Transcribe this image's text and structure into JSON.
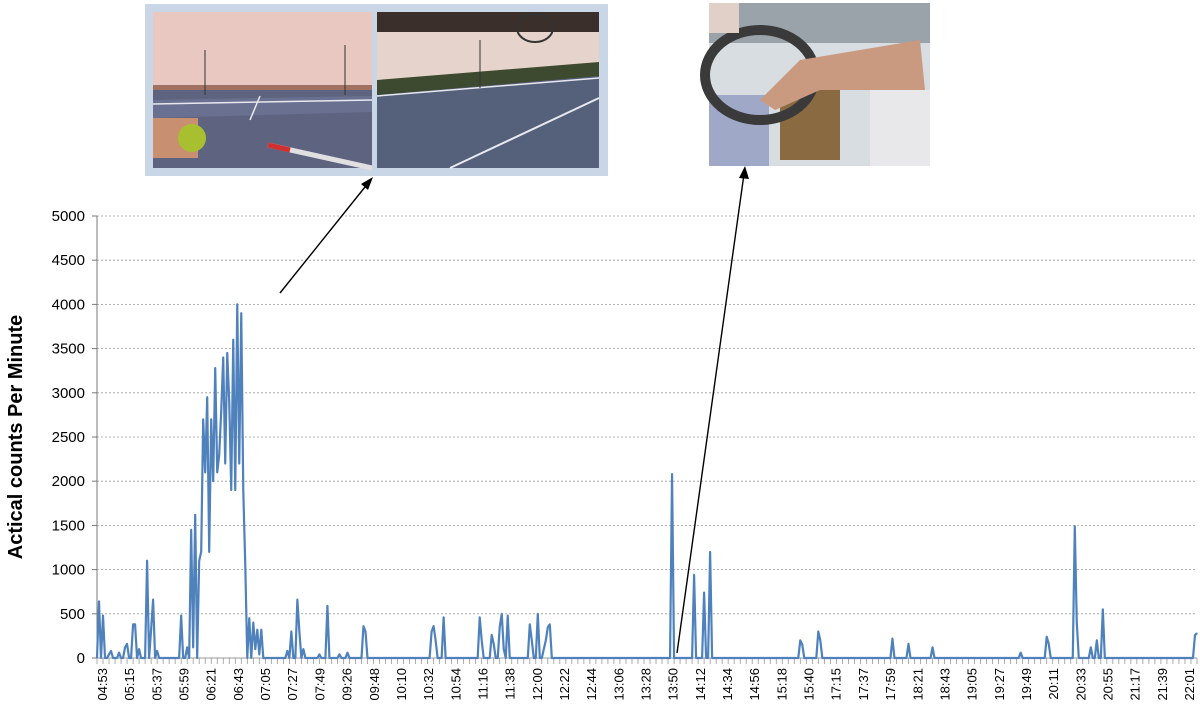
{
  "chart_data": {
    "type": "line",
    "title": "",
    "xlabel": "",
    "ylabel": "Actical counts Per Minute",
    "ylim": [
      0,
      5000
    ],
    "yticks": [
      0,
      500,
      1000,
      1500,
      2000,
      2500,
      3000,
      3500,
      4000,
      4500,
      5000
    ],
    "grid": true,
    "line_color": "#4f81bd",
    "grid_color": "#9a9a9a",
    "x_tick_labels": [
      "04:53",
      "05:15",
      "05:37",
      "05:59",
      "06:21",
      "06:43",
      "07:05",
      "07:27",
      "07:49",
      "09:26",
      "09:48",
      "10:10",
      "10:32",
      "10:54",
      "11:16",
      "11:38",
      "12:00",
      "12:22",
      "12:44",
      "13:06",
      "13:28",
      "13:50",
      "14:12",
      "14:34",
      "14:56",
      "15:18",
      "15:40",
      "17:15",
      "17:37",
      "17:59",
      "18:21",
      "18:43",
      "19:05",
      "19:27",
      "19:49",
      "20:11",
      "20:33",
      "20:55",
      "21:17",
      "21:39",
      "22:01"
    ],
    "series": [
      {
        "values": [
          0,
          640,
          0,
          480,
          0,
          0,
          40,
          80,
          0,
          0,
          0,
          60,
          0,
          0,
          120,
          160,
          0,
          0,
          380,
          380,
          0,
          100,
          0,
          0,
          0,
          1100,
          0,
          320,
          660,
          0,
          80,
          0,
          0,
          0,
          0,
          0,
          0,
          0,
          0,
          0,
          0,
          0,
          480,
          0,
          0,
          120,
          0,
          1450,
          120,
          1620,
          0,
          1100,
          1200,
          2700,
          2100,
          2950,
          1200,
          2700,
          2000,
          3280,
          2100,
          2300,
          2800,
          3400,
          2200,
          3450,
          2900,
          1900,
          3600,
          1900,
          4000,
          2200,
          3900,
          1900,
          1050,
          0,
          450,
          0,
          400,
          100,
          320,
          40,
          320,
          0,
          0,
          0,
          0,
          0,
          0,
          0,
          0,
          0,
          0,
          0,
          0,
          80,
          0,
          300,
          0,
          0,
          660,
          300,
          0,
          100,
          0,
          0,
          0,
          0,
          0,
          0,
          0,
          40,
          0,
          0,
          0,
          590,
          0,
          0,
          0,
          0,
          0,
          40,
          0,
          0,
          0,
          60,
          0,
          0,
          0,
          0,
          0,
          0,
          0,
          360,
          300,
          0,
          0,
          0,
          0,
          0,
          0,
          0,
          0,
          0,
          0,
          0,
          0,
          0,
          0,
          0,
          0,
          0,
          0,
          0,
          0,
          0,
          0,
          0,
          0,
          0,
          0,
          0,
          0,
          0,
          0,
          0,
          0,
          300,
          360,
          200,
          0,
          0,
          0,
          460,
          0,
          0,
          0,
          0,
          0,
          0,
          0,
          0,
          0,
          0,
          0,
          0,
          0,
          0,
          0,
          0,
          0,
          460,
          200,
          0,
          0,
          0,
          0,
          260,
          160,
          0,
          0,
          350,
          500,
          100,
          0,
          480,
          0,
          0,
          0,
          0,
          0,
          0,
          0,
          0,
          0,
          0,
          380,
          200,
          0,
          0,
          500,
          0,
          0,
          100,
          200,
          350,
          380,
          0,
          0,
          0,
          0,
          0,
          0,
          0,
          0,
          0,
          0,
          0,
          0,
          0,
          0,
          0,
          0,
          0,
          0,
          0,
          0,
          0,
          0,
          0,
          0,
          0,
          0,
          0,
          0,
          0,
          0,
          0,
          0,
          0,
          0,
          0,
          0,
          0,
          0,
          0,
          0,
          0,
          0,
          0,
          0,
          0,
          0,
          0,
          0,
          0,
          0,
          0,
          0,
          0,
          0,
          0,
          0,
          0,
          0,
          0,
          0,
          2080,
          0,
          0,
          0,
          0,
          0,
          0,
          0,
          0,
          0,
          0,
          940,
          0,
          0,
          0,
          0,
          740,
          0,
          0,
          1200,
          0,
          0,
          0,
          0,
          0,
          0,
          0,
          0,
          0,
          0,
          0,
          0,
          0,
          0,
          0,
          0,
          0,
          0,
          0,
          0,
          0,
          0,
          0,
          0,
          0,
          0,
          0,
          0,
          0,
          0,
          0,
          0,
          0,
          0,
          0,
          0,
          0,
          0,
          0,
          0,
          0,
          0,
          0,
          0,
          200,
          150,
          0,
          0,
          0,
          0,
          0,
          0,
          0,
          300,
          200,
          0,
          0,
          0,
          0,
          0,
          0,
          0,
          0,
          0,
          0,
          0,
          0,
          0,
          0,
          0,
          0,
          0,
          0,
          0,
          0,
          0,
          0,
          0,
          0,
          0,
          0,
          0,
          0,
          0,
          0,
          0,
          0,
          0,
          0,
          0,
          220,
          0,
          0,
          0,
          0,
          0,
          0,
          0,
          160,
          0,
          0,
          0,
          0,
          0,
          0,
          0,
          0,
          0,
          0,
          0,
          120,
          0,
          0,
          0,
          0,
          0,
          0,
          0,
          0,
          0,
          0,
          0,
          0,
          0,
          0,
          0,
          0,
          0,
          0,
          0,
          0,
          0,
          0,
          0,
          0,
          0,
          0,
          0,
          0,
          0,
          0,
          0,
          0,
          0,
          0,
          0,
          0,
          0,
          0,
          0,
          0,
          0,
          0,
          0,
          60,
          0,
          0,
          0,
          0,
          0,
          0,
          0,
          0,
          0,
          0,
          0,
          0,
          240,
          160,
          0,
          0,
          0,
          0,
          0,
          0,
          0,
          0,
          0,
          0,
          0,
          0,
          1490,
          400,
          0,
          0,
          0,
          0,
          0,
          0,
          120,
          0,
          0,
          200,
          0,
          0,
          550,
          0,
          0,
          0,
          0,
          0,
          0,
          0,
          0,
          0,
          0,
          0,
          0,
          0,
          0,
          0,
          0,
          0,
          0,
          0,
          0,
          0,
          0,
          0,
          0,
          0,
          0,
          0,
          0,
          0,
          0,
          0,
          0,
          0,
          0,
          0,
          0,
          0,
          0,
          0,
          0,
          0,
          0,
          0,
          0,
          0,
          260,
          280
        ]
      }
    ]
  },
  "photos": {
    "tennis": {
      "frame_color": "#c9d6e6",
      "panel_left": {
        "sky": "#e9c8c2",
        "court": "#5e6380",
        "ball": "#a8c030"
      },
      "panel_right": {
        "sky": "#e6d4cc",
        "court": "#55607a",
        "trees": "#3e4a30"
      }
    },
    "driving": {
      "steering_wheel": "#3a3a3a",
      "arm": "#c99a80",
      "dashboard": "#8a6a40"
    }
  }
}
